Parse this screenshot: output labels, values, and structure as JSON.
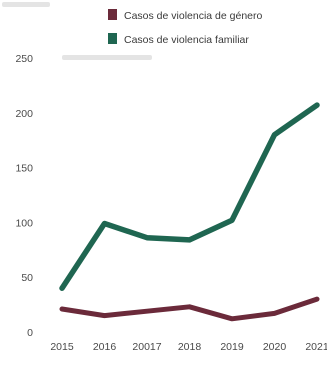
{
  "chart_data": {
    "type": "line",
    "x": [
      "2015",
      "2016",
      "20017",
      "2018",
      "2019",
      "2020",
      "2021"
    ],
    "series": [
      {
        "name": "Casos de violencia de género",
        "color": "#6b2a3a",
        "values": [
          21,
          15,
          19,
          23,
          12,
          17,
          30
        ]
      },
      {
        "name": "Casos de violencia familiar",
        "color": "#1f6651",
        "values": [
          40,
          99,
          86,
          84,
          102,
          180,
          207
        ]
      }
    ],
    "yticks": [
      "0",
      "50",
      "100",
      "150",
      "200",
      "250"
    ],
    "ylim": [
      0,
      250
    ],
    "grid": false,
    "legend_position": "top"
  }
}
